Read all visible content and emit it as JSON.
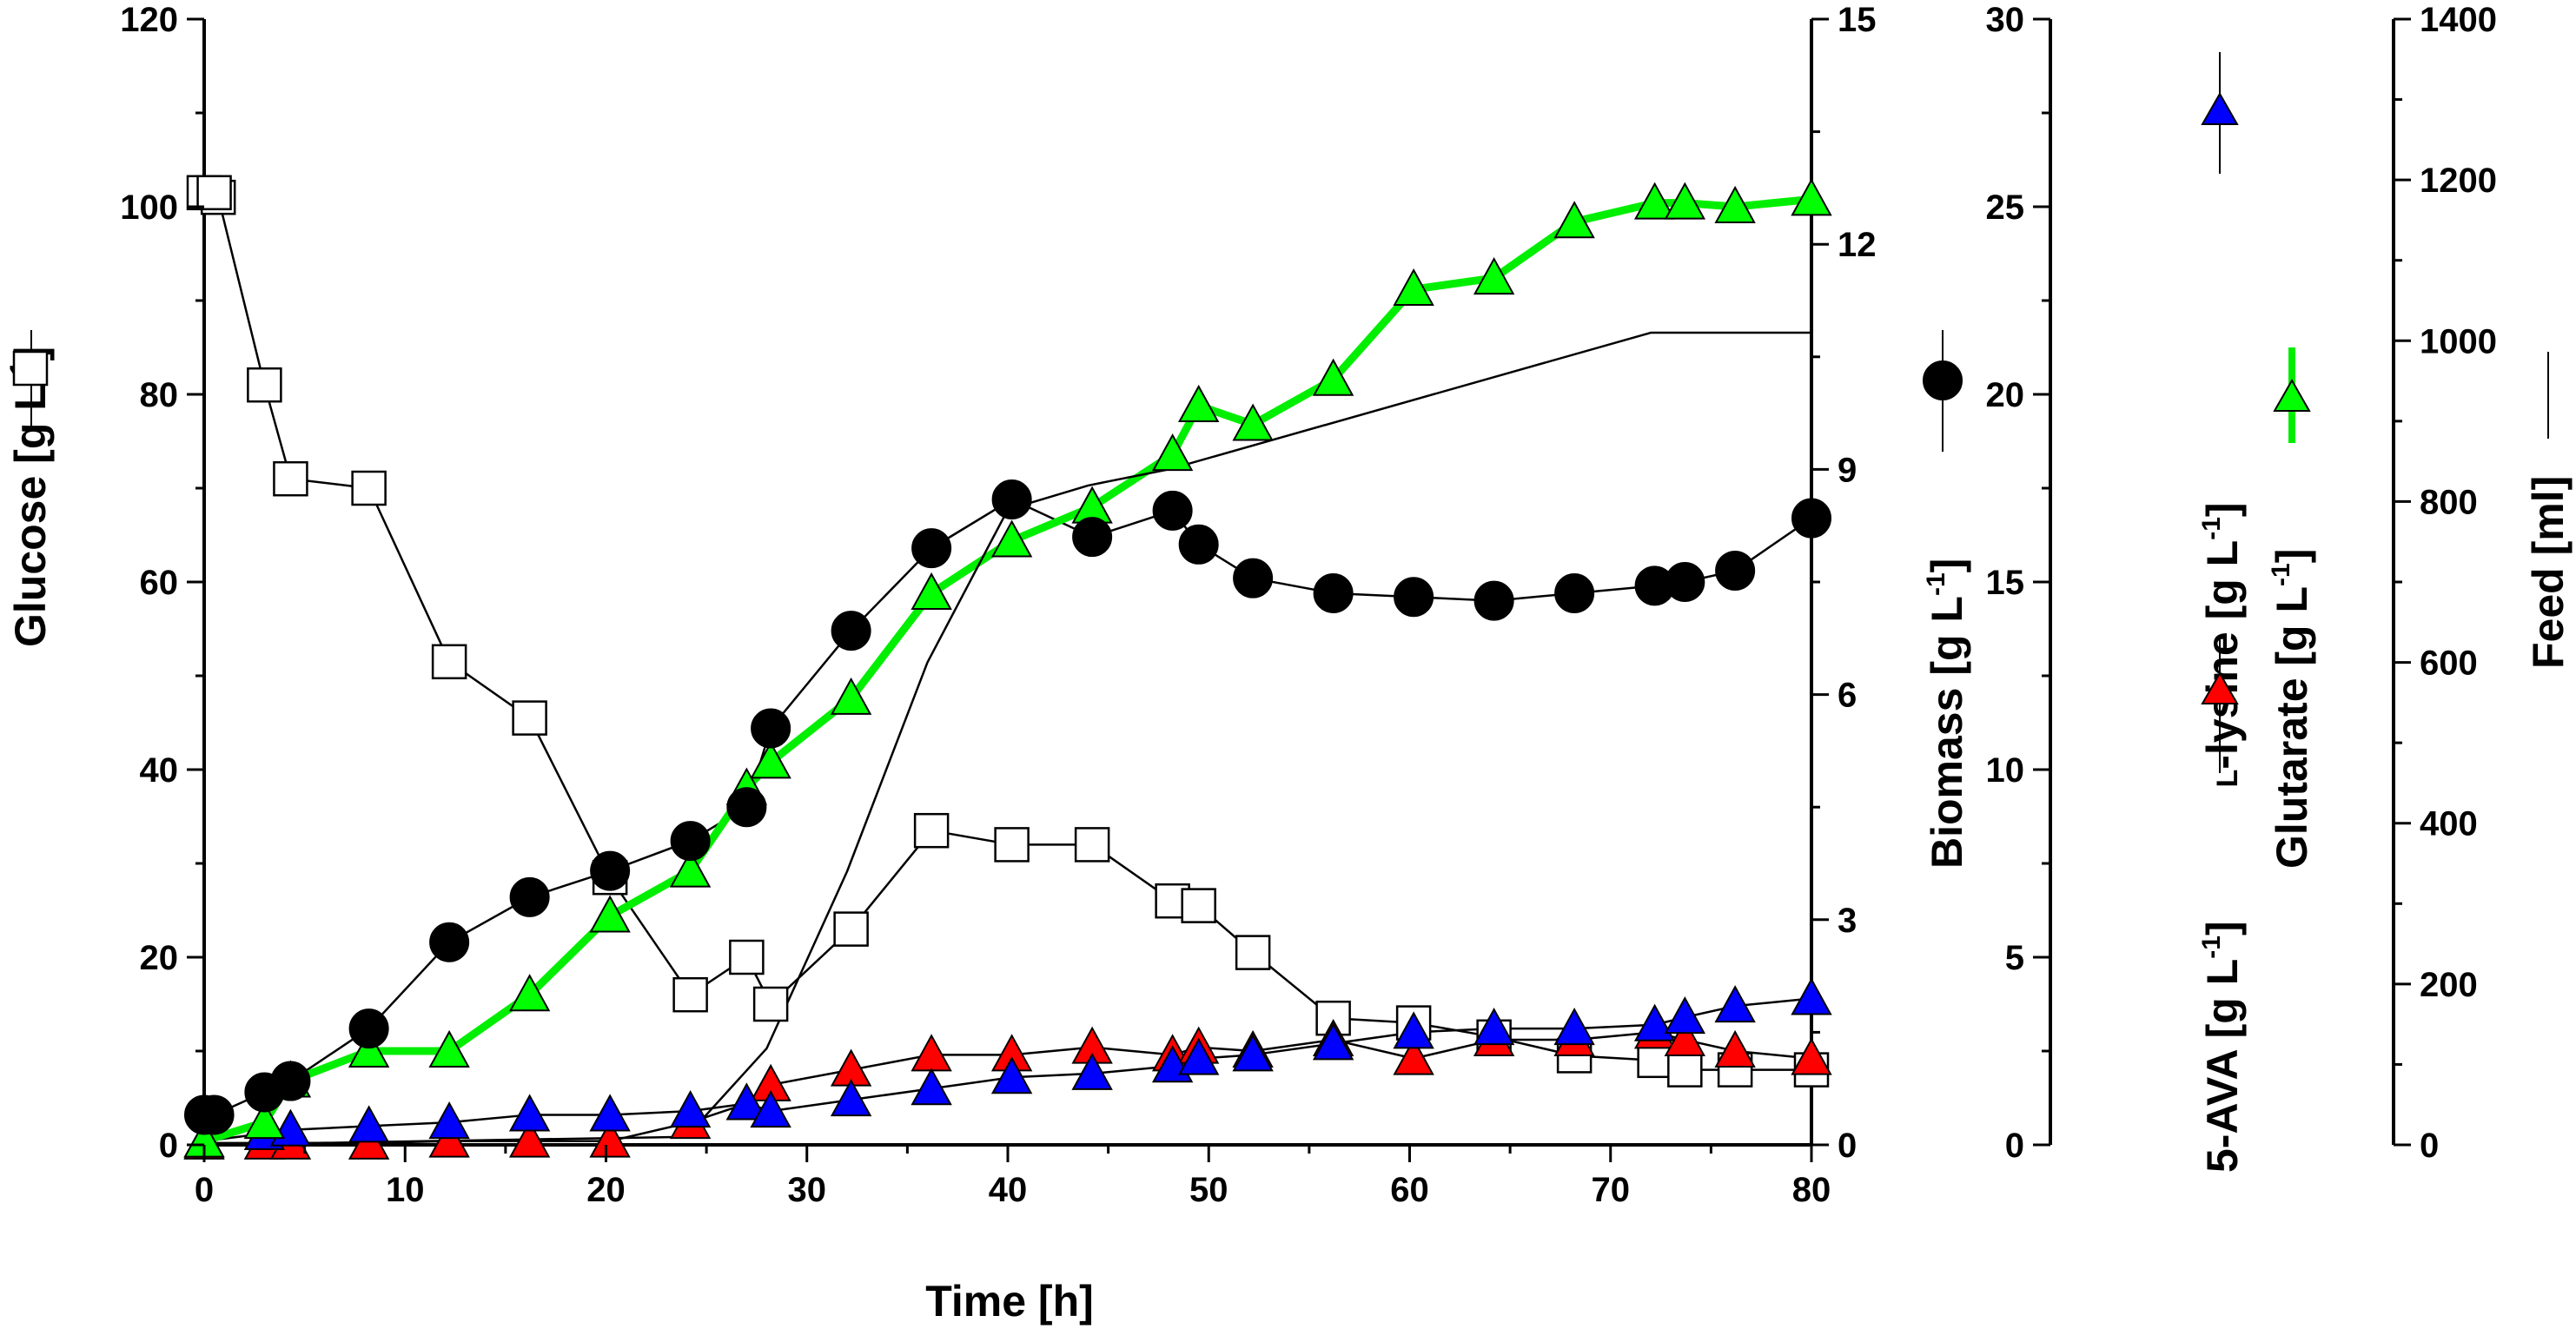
{
  "chart_data": {
    "type": "line",
    "x": {
      "label": "Time [h]",
      "range": [
        0,
        80
      ],
      "ticks": [
        "0",
        "10",
        "20",
        "30",
        "40",
        "50",
        "60",
        "70",
        "80"
      ]
    },
    "axes": {
      "glucose": {
        "label": "Glucose [g L",
        "sup": "-1",
        "range": [
          0,
          120
        ],
        "ticks": [
          "0",
          "20",
          "40",
          "60",
          "80",
          "100",
          "120"
        ]
      },
      "biomass": {
        "label": "Biomass [g L",
        "sup": "-1",
        "range": [
          0,
          15
        ],
        "ticks": [
          "0",
          "3",
          "6",
          "9",
          "12",
          "15"
        ]
      },
      "amino": {
        "label_ava": "5-AVA [g L",
        "label_lys_prefix": "L",
        "label_lys": "-lysine [g L",
        "sup": "-1",
        "range": [
          0,
          30
        ],
        "ticks": [
          "0",
          "5",
          "10",
          "15",
          "20",
          "25",
          "30"
        ]
      },
      "glutarate": {
        "label": "Glutarate [g L",
        "sup": "-1"
      },
      "feed": {
        "label": "Feed [ml]",
        "range": [
          0,
          1400
        ],
        "ticks": [
          "0",
          "200",
          "400",
          "600",
          "800",
          "1000",
          "1200",
          "1400"
        ]
      }
    },
    "series": [
      {
        "name": "Glucose",
        "axis": "glucose",
        "marker": "square-open",
        "points": [
          [
            0,
            101.5
          ],
          [
            0.7,
            101
          ],
          [
            0.5,
            101.5
          ],
          [
            3,
            81
          ],
          [
            4.3,
            71
          ],
          [
            8.2,
            70
          ],
          [
            12.2,
            51.5
          ],
          [
            16.2,
            45.5
          ],
          [
            20.2,
            28.5
          ],
          [
            24.2,
            16
          ],
          [
            27,
            20
          ],
          [
            28.2,
            15
          ],
          [
            32.2,
            23
          ],
          [
            36.2,
            33.5
          ],
          [
            40.2,
            32
          ],
          [
            44.2,
            32
          ],
          [
            48.2,
            26
          ],
          [
            49.5,
            25.5
          ],
          [
            52.2,
            20.5
          ],
          [
            56.2,
            13.5
          ],
          [
            60.2,
            13
          ],
          [
            64.2,
            11.5
          ],
          [
            68.2,
            9.5
          ],
          [
            72.2,
            9
          ],
          [
            73.7,
            8
          ],
          [
            76.2,
            8
          ],
          [
            80,
            8
          ]
        ]
      },
      {
        "name": "Biomass",
        "axis": "biomass",
        "marker": "circle-filled",
        "points": [
          [
            0,
            0.4
          ],
          [
            0.5,
            0.4
          ],
          [
            3,
            0.7
          ],
          [
            4.3,
            0.85
          ],
          [
            8.2,
            1.55
          ],
          [
            12.2,
            2.7
          ],
          [
            16.2,
            3.3
          ],
          [
            20.2,
            3.65
          ],
          [
            24.2,
            4.05
          ],
          [
            27,
            4.5
          ],
          [
            28.2,
            5.55
          ],
          [
            32.2,
            6.85
          ],
          [
            36.2,
            7.95
          ],
          [
            40.2,
            8.6
          ],
          [
            44.2,
            8.1
          ],
          [
            48.2,
            8.45
          ],
          [
            49.5,
            8.0
          ],
          [
            52.2,
            7.55
          ],
          [
            56.2,
            7.35
          ],
          [
            60.2,
            7.3
          ],
          [
            64.2,
            7.25
          ],
          [
            68.2,
            7.35
          ],
          [
            72.2,
            7.45
          ],
          [
            73.7,
            7.5
          ],
          [
            76.2,
            7.65
          ],
          [
            80,
            8.35
          ]
        ]
      },
      {
        "name": "L-lysine",
        "axis": "amino",
        "marker": "triangle",
        "color": "#0000ff",
        "points": [
          [
            0,
            0.1
          ],
          [
            3,
            0.3
          ],
          [
            4.3,
            0.4
          ],
          [
            8.2,
            0.5
          ],
          [
            12.2,
            0.6
          ],
          [
            16.2,
            0.8
          ],
          [
            20.2,
            0.8
          ],
          [
            24.2,
            0.9
          ],
          [
            27,
            1.1
          ],
          [
            28.2,
            0.9
          ],
          [
            32.2,
            1.2
          ],
          [
            36.2,
            1.5
          ],
          [
            40.2,
            1.8
          ],
          [
            44.2,
            1.9
          ],
          [
            48.2,
            2.1
          ],
          [
            49.5,
            2.3
          ],
          [
            52.2,
            2.4
          ],
          [
            56.2,
            2.7
          ],
          [
            60.2,
            3.0
          ],
          [
            64.2,
            3.1
          ],
          [
            68.2,
            3.1
          ],
          [
            72.2,
            3.2
          ],
          [
            73.7,
            3.4
          ],
          [
            76.2,
            3.7
          ],
          [
            80,
            3.9
          ]
        ]
      },
      {
        "name": "5-AVA",
        "axis": "amino",
        "marker": "triangle",
        "color": "#ff0000",
        "points": [
          [
            0,
            0.05
          ],
          [
            3,
            0.05
          ],
          [
            4.3,
            0.05
          ],
          [
            8.2,
            0.05
          ],
          [
            12.2,
            0.1
          ],
          [
            16.2,
            0.1
          ],
          [
            20.2,
            0.1
          ],
          [
            24.2,
            0.6
          ],
          [
            27,
            1.1
          ],
          [
            28.2,
            1.6
          ],
          [
            32.2,
            2.0
          ],
          [
            36.2,
            2.4
          ],
          [
            40.2,
            2.4
          ],
          [
            44.2,
            2.6
          ],
          [
            48.2,
            2.4
          ],
          [
            49.5,
            2.6
          ],
          [
            52.2,
            2.5
          ],
          [
            56.2,
            2.8
          ],
          [
            60.2,
            2.3
          ],
          [
            64.2,
            2.8
          ],
          [
            68.2,
            2.8
          ],
          [
            72.2,
            3.0
          ],
          [
            73.7,
            2.8
          ],
          [
            76.2,
            2.5
          ],
          [
            80,
            2.3
          ]
        ]
      },
      {
        "name": "Glutarate",
        "axis": "amino",
        "marker": "triangle",
        "color": "#00ff00",
        "line_color": "#00ee00",
        "points": [
          [
            0,
            0.1
          ],
          [
            3,
            0.6
          ],
          [
            4.3,
            1.7
          ],
          [
            8.2,
            2.5
          ],
          [
            12.2,
            2.5
          ],
          [
            16.2,
            4.0
          ],
          [
            20.2,
            6.1
          ],
          [
            24.2,
            7.3
          ],
          [
            27,
            9.5
          ],
          [
            28.2,
            10.2
          ],
          [
            32.2,
            11.9
          ],
          [
            36.2,
            14.7
          ],
          [
            40.2,
            16.1
          ],
          [
            44.2,
            17.0
          ],
          [
            48.2,
            18.4
          ],
          [
            49.5,
            19.7
          ],
          [
            52.2,
            19.2
          ],
          [
            56.2,
            20.4
          ],
          [
            60.2,
            22.8
          ],
          [
            64.2,
            23.1
          ],
          [
            68.2,
            24.6
          ],
          [
            72.2,
            25.1
          ],
          [
            73.7,
            25.1
          ],
          [
            76.2,
            25.0
          ],
          [
            80,
            25.2
          ]
        ]
      },
      {
        "name": "Feed",
        "axis": "feed",
        "marker": "none",
        "points": [
          [
            0,
            0
          ],
          [
            24,
            10
          ],
          [
            28,
            120
          ],
          [
            32,
            340
          ],
          [
            36,
            600
          ],
          [
            40,
            790
          ],
          [
            44,
            820
          ],
          [
            48,
            840
          ],
          [
            72,
            1010
          ],
          [
            80,
            1010
          ]
        ]
      }
    ]
  }
}
